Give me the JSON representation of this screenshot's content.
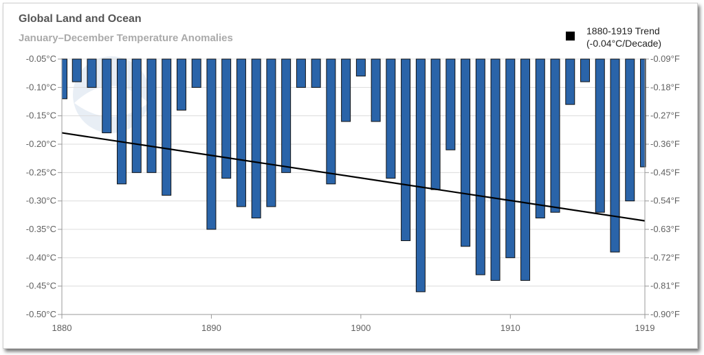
{
  "chart_data": {
    "type": "bar",
    "title": "Global Land and Ocean",
    "subtitle": "January–December Temperature Anomalies",
    "x": [
      1880,
      1881,
      1882,
      1883,
      1884,
      1885,
      1886,
      1887,
      1888,
      1889,
      1890,
      1891,
      1892,
      1893,
      1894,
      1895,
      1896,
      1897,
      1898,
      1899,
      1900,
      1901,
      1902,
      1903,
      1904,
      1905,
      1906,
      1907,
      1908,
      1909,
      1910,
      1911,
      1912,
      1913,
      1914,
      1915,
      1916,
      1917,
      1918,
      1919
    ],
    "values": [
      -0.12,
      -0.09,
      -0.1,
      -0.18,
      -0.27,
      -0.25,
      -0.25,
      -0.29,
      -0.14,
      -0.1,
      -0.35,
      -0.26,
      -0.31,
      -0.33,
      -0.31,
      -0.25,
      -0.1,
      -0.1,
      -0.27,
      -0.16,
      -0.08,
      -0.16,
      -0.26,
      -0.37,
      -0.46,
      -0.28,
      -0.21,
      -0.38,
      -0.43,
      -0.44,
      -0.4,
      -0.44,
      -0.33,
      -0.32,
      -0.13,
      -0.09,
      -0.32,
      -0.39,
      -0.3,
      -0.24
    ],
    "bar_color": "#2a64a9",
    "trend": {
      "label_line1": "1880-1919 Trend",
      "label_line2": "(-0.04°C/Decade)",
      "color": "#000000",
      "start": {
        "x": 1880,
        "y": -0.18
      },
      "end": {
        "x": 1919,
        "y": -0.335
      }
    },
    "ylim": [
      -0.5,
      -0.05
    ],
    "xlim": [
      1880,
      1919
    ],
    "y_ticks_c": [
      "-0.05°C",
      "-0.10°C",
      "-0.15°C",
      "-0.20°C",
      "-0.25°C",
      "-0.30°C",
      "-0.35°C",
      "-0.40°C",
      "-0.45°C",
      "-0.50°C"
    ],
    "y_ticks_f": [
      "-0.09°F",
      "-0.18°F",
      "-0.27°F",
      "-0.36°F",
      "-0.45°F",
      "-0.54°F",
      "-0.63°F",
      "-0.72°F",
      "-0.81°F",
      "-0.90°F"
    ],
    "x_ticks": [
      "1880",
      "1890",
      "1900",
      "1910",
      "1919"
    ],
    "grid": true,
    "legend_position": "top-right"
  }
}
